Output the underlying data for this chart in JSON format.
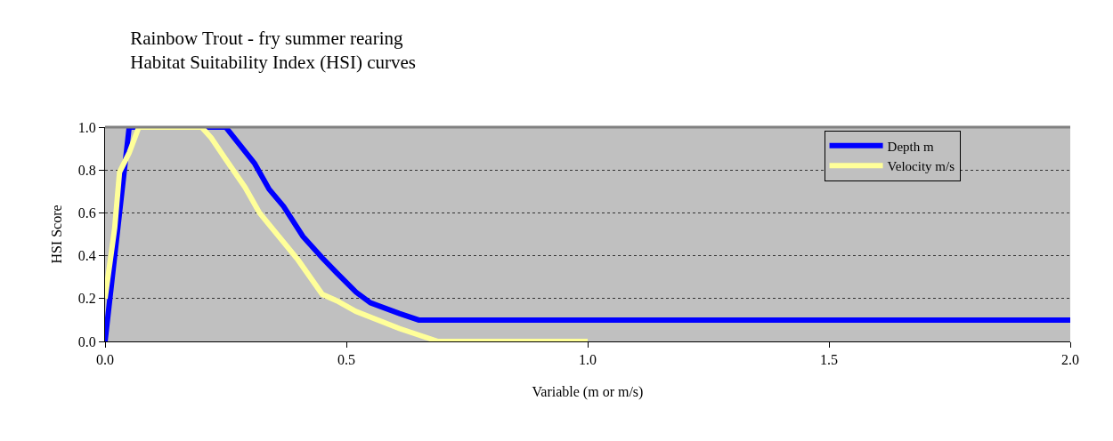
{
  "chart_data": {
    "type": "line",
    "title": "Rainbow Trout - fry summer rearing\nHabitat Suitability Index (HSI) curves",
    "xlabel": "Variable (m or m/s)",
    "ylabel": "HSI Score",
    "series": [
      {
        "name": "Depth m",
        "color": "#0000ff",
        "x": [
          0,
          0.05,
          0.25,
          0.31,
          0.34,
          0.37,
          0.41,
          0.45,
          0.48,
          0.52,
          0.55,
          0.61,
          0.65,
          2.0
        ],
        "values": [
          0,
          1,
          1,
          0.83,
          0.71,
          0.63,
          0.49,
          0.39,
          0.32,
          0.23,
          0.18,
          0.13,
          0.1,
          0.1
        ]
      },
      {
        "name": "Velocity m/s",
        "color": "#ffff99",
        "x": [
          0,
          0.02,
          0.03,
          0.05,
          0.07,
          0.2,
          0.22,
          0.25,
          0.29,
          0.32,
          0.36,
          0.4,
          0.45,
          0.48,
          0.52,
          0.61,
          0.65,
          0.69,
          1.0
        ],
        "values": [
          0.2,
          0.53,
          0.79,
          0.88,
          1,
          1,
          0.95,
          0.85,
          0.72,
          0.6,
          0.49,
          0.38,
          0.22,
          0.19,
          0.14,
          0.06,
          0.03,
          0,
          0
        ]
      }
    ],
    "xlim": [
      0,
      2
    ],
    "xticks": [
      {
        "value": 0,
        "label": "0.0"
      },
      0.5,
      {
        "value": 1,
        "label": "1.0"
      },
      1.5,
      {
        "value": 2,
        "label": "2.0"
      }
    ],
    "ylim": [
      0,
      1
    ],
    "yticks": [
      {
        "value": 0,
        "label": "0.0"
      },
      0.2,
      0.4,
      0.6,
      0.8,
      {
        "value": 1,
        "label": "1.0"
      }
    ],
    "grid": "y",
    "legend": "top right",
    "marker": "none",
    "line_style": "solid"
  }
}
